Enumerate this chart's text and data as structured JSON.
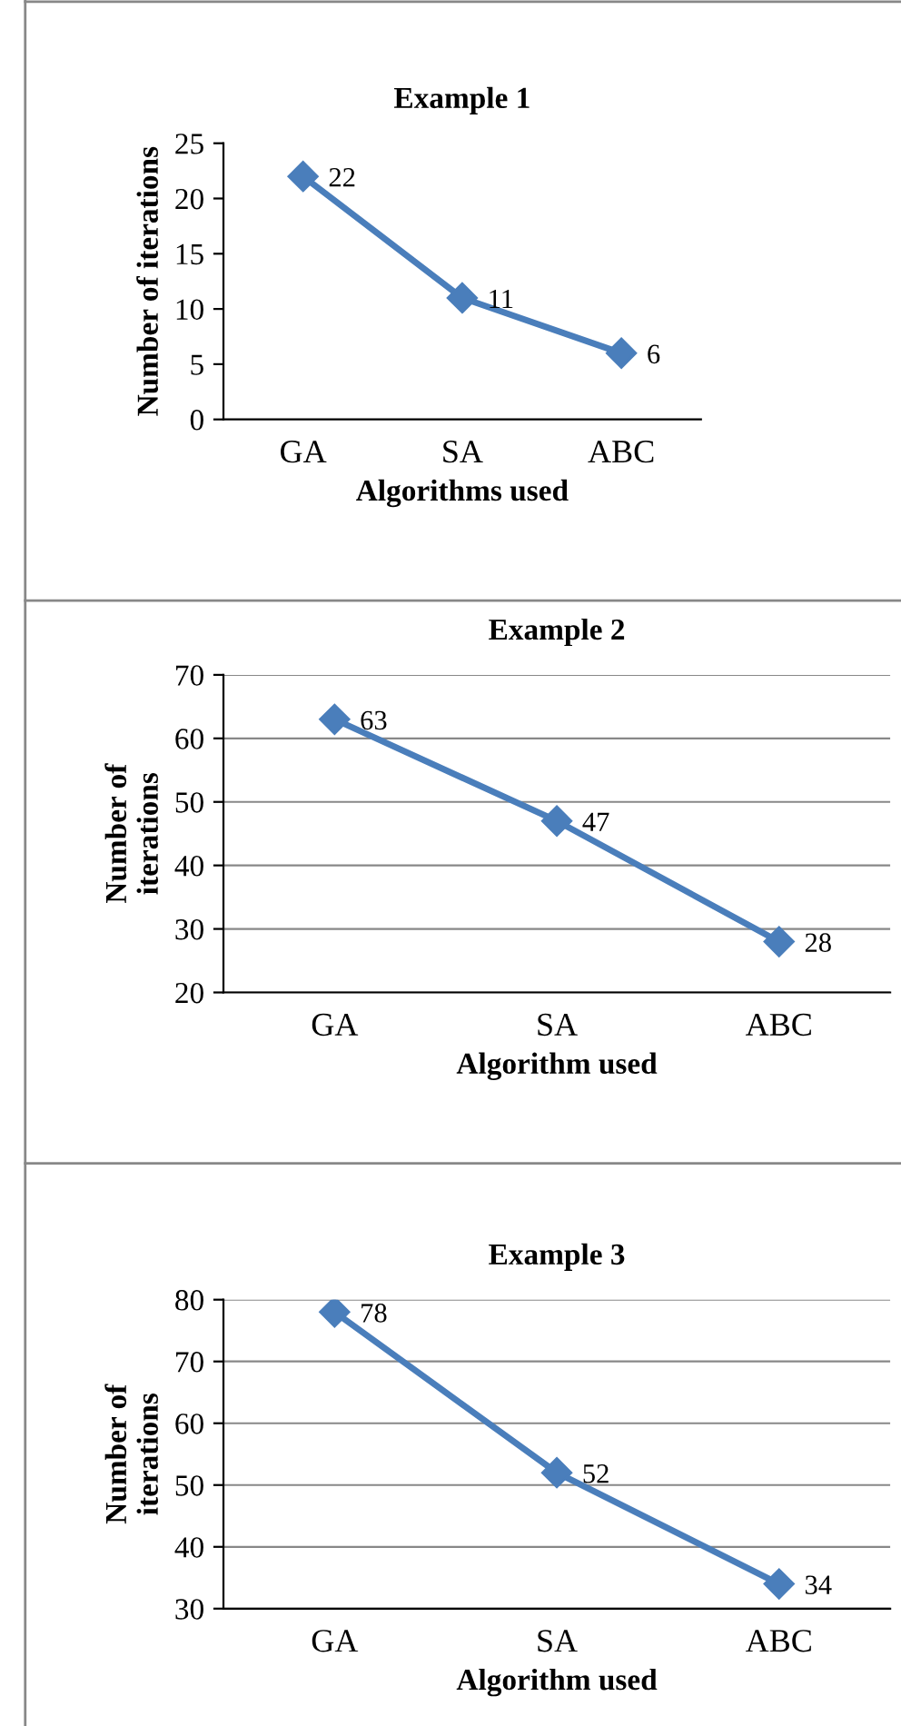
{
  "chart_data": [
    {
      "type": "line",
      "title": "Example 1",
      "xlabel": "Algorithms used",
      "ylabel": "Number of iterations",
      "categories": [
        "GA",
        "SA",
        "ABC"
      ],
      "values": [
        22,
        11,
        6
      ],
      "color": "#4a7ebb",
      "ylim": [
        0,
        25
      ],
      "yticks": [
        0,
        5,
        10,
        15,
        20,
        25
      ],
      "grid": false,
      "marker": "diamond",
      "data_labels": true
    },
    {
      "type": "line",
      "title": "Example 2",
      "xlabel": "Algorithm used",
      "ylabel": "Number of\niterations",
      "categories": [
        "GA",
        "SA",
        "ABC"
      ],
      "values": [
        63,
        47,
        28
      ],
      "color": "#4a7ebb",
      "ylim": [
        20,
        70
      ],
      "yticks": [
        20,
        30,
        40,
        50,
        60,
        70
      ],
      "grid": "y",
      "marker": "diamond",
      "data_labels": true
    },
    {
      "type": "line",
      "title": "Example 3",
      "xlabel": "Algorithm used",
      "ylabel": "Number of\niterations",
      "categories": [
        "GA",
        "SA",
        "ABC"
      ],
      "values": [
        78,
        52,
        34
      ],
      "color": "#4a7ebb",
      "ylim": [
        30,
        80
      ],
      "yticks": [
        30,
        40,
        50,
        60,
        70,
        80
      ],
      "grid": "y",
      "marker": "diamond",
      "data_labels": true
    }
  ]
}
